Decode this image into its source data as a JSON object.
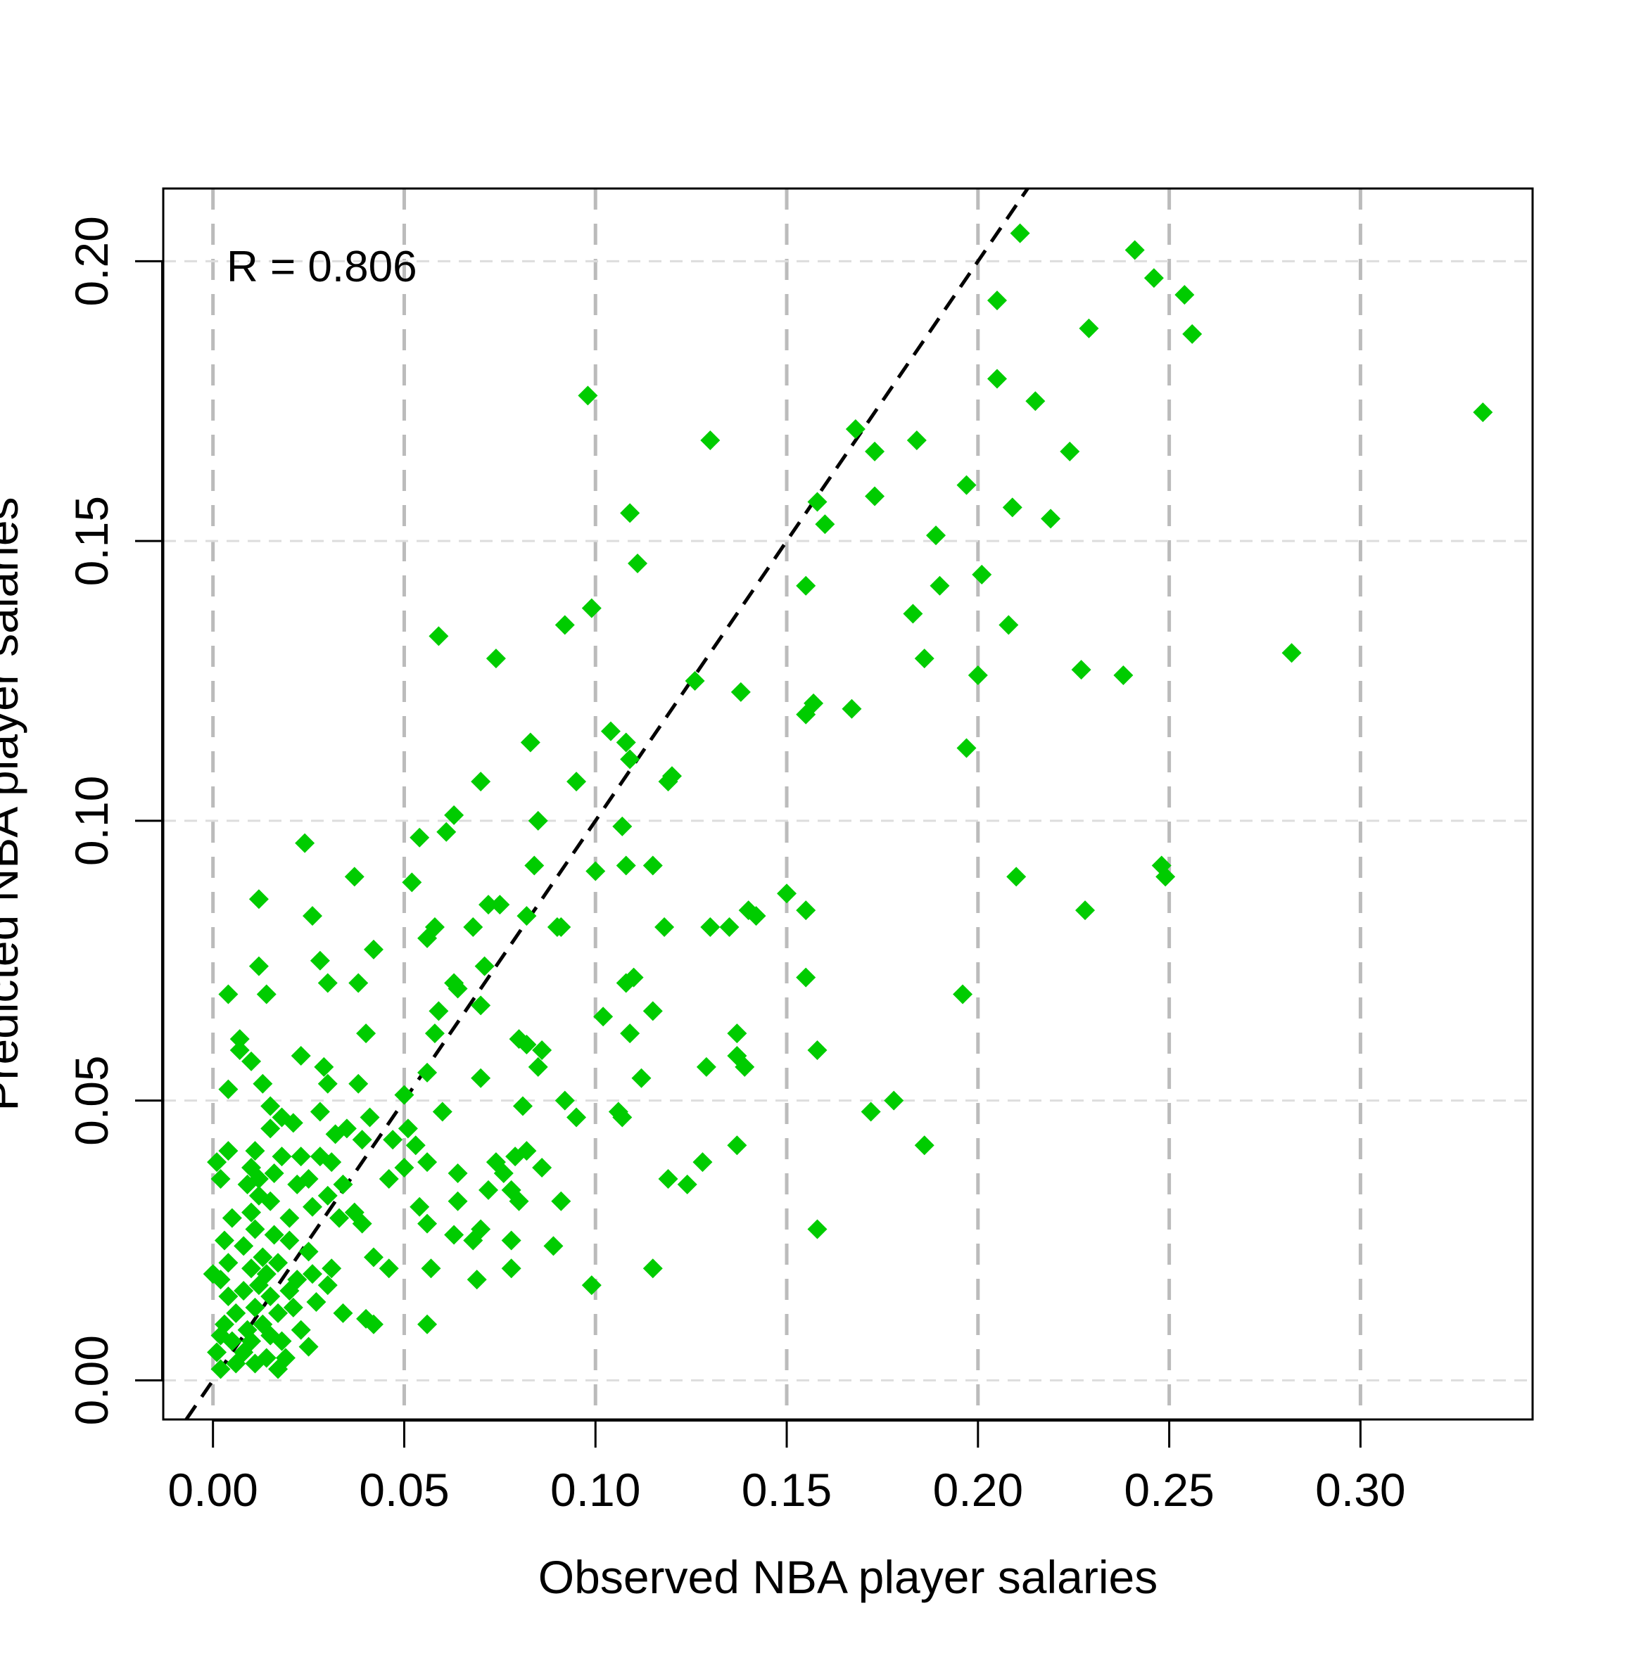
{
  "chart_data": {
    "type": "scatter",
    "title": "",
    "xlabel": "Observed NBA player salaries",
    "ylabel": "Predicted NBA player salaries",
    "xlim": [
      -0.013,
      0.345
    ],
    "ylim": [
      -0.007,
      0.213
    ],
    "x_ticks": [
      "0.00",
      "0.05",
      "0.10",
      "0.15",
      "0.20",
      "0.25",
      "0.30"
    ],
    "y_ticks": [
      "0.00",
      "0.05",
      "0.10",
      "0.15",
      "0.20"
    ],
    "grid": true,
    "reference_line": "y = x",
    "annotation": "R = 0.806",
    "colors": {
      "points": "#00cc00",
      "reference_line": "#000000",
      "grid": "#bbbbbb"
    },
    "marker": "diamond",
    "points": [
      [
        0.211,
        0.205
      ],
      [
        0.241,
        0.202
      ],
      [
        0.246,
        0.197
      ],
      [
        0.254,
        0.194
      ],
      [
        0.205,
        0.193
      ],
      [
        0.229,
        0.188
      ],
      [
        0.256,
        0.187
      ],
      [
        0.098,
        0.176
      ],
      [
        0.205,
        0.179
      ],
      [
        0.215,
        0.175
      ],
      [
        0.332,
        0.173
      ],
      [
        0.168,
        0.17
      ],
      [
        0.13,
        0.168
      ],
      [
        0.184,
        0.168
      ],
      [
        0.173,
        0.166
      ],
      [
        0.224,
        0.166
      ],
      [
        0.197,
        0.16
      ],
      [
        0.173,
        0.158
      ],
      [
        0.158,
        0.157
      ],
      [
        0.109,
        0.155
      ],
      [
        0.209,
        0.156
      ],
      [
        0.219,
        0.154
      ],
      [
        0.16,
        0.153
      ],
      [
        0.189,
        0.151
      ],
      [
        0.111,
        0.146
      ],
      [
        0.201,
        0.144
      ],
      [
        0.155,
        0.142
      ],
      [
        0.19,
        0.142
      ],
      [
        0.099,
        0.138
      ],
      [
        0.183,
        0.137
      ],
      [
        0.092,
        0.135
      ],
      [
        0.208,
        0.135
      ],
      [
        0.059,
        0.133
      ],
      [
        0.074,
        0.129
      ],
      [
        0.186,
        0.129
      ],
      [
        0.282,
        0.13
      ],
      [
        0.227,
        0.127
      ],
      [
        0.238,
        0.126
      ],
      [
        0.2,
        0.126
      ],
      [
        0.126,
        0.125
      ],
      [
        0.138,
        0.123
      ],
      [
        0.157,
        0.121
      ],
      [
        0.155,
        0.119
      ],
      [
        0.167,
        0.12
      ],
      [
        0.104,
        0.116
      ],
      [
        0.108,
        0.114
      ],
      [
        0.083,
        0.114
      ],
      [
        0.197,
        0.113
      ],
      [
        0.109,
        0.111
      ],
      [
        0.07,
        0.107
      ],
      [
        0.095,
        0.107
      ],
      [
        0.119,
        0.107
      ],
      [
        0.12,
        0.108
      ],
      [
        0.063,
        0.101
      ],
      [
        0.085,
        0.1
      ],
      [
        0.107,
        0.099
      ],
      [
        0.054,
        0.097
      ],
      [
        0.061,
        0.098
      ],
      [
        0.024,
        0.096
      ],
      [
        0.084,
        0.092
      ],
      [
        0.108,
        0.092
      ],
      [
        0.115,
        0.092
      ],
      [
        0.248,
        0.092
      ],
      [
        0.249,
        0.09
      ],
      [
        0.037,
        0.09
      ],
      [
        0.21,
        0.09
      ],
      [
        0.052,
        0.089
      ],
      [
        0.1,
        0.091
      ],
      [
        0.012,
        0.086
      ],
      [
        0.15,
        0.087
      ],
      [
        0.072,
        0.085
      ],
      [
        0.075,
        0.085
      ],
      [
        0.155,
        0.084
      ],
      [
        0.14,
        0.084
      ],
      [
        0.142,
        0.083
      ],
      [
        0.228,
        0.084
      ],
      [
        0.026,
        0.083
      ],
      [
        0.082,
        0.083
      ],
      [
        0.058,
        0.081
      ],
      [
        0.068,
        0.081
      ],
      [
        0.09,
        0.081
      ],
      [
        0.091,
        0.081
      ],
      [
        0.118,
        0.081
      ],
      [
        0.13,
        0.081
      ],
      [
        0.135,
        0.081
      ],
      [
        0.056,
        0.079
      ],
      [
        0.042,
        0.077
      ],
      [
        0.028,
        0.075
      ],
      [
        0.012,
        0.074
      ],
      [
        0.071,
        0.074
      ],
      [
        0.038,
        0.071
      ],
      [
        0.03,
        0.071
      ],
      [
        0.063,
        0.071
      ],
      [
        0.108,
        0.071
      ],
      [
        0.11,
        0.072
      ],
      [
        0.155,
        0.072
      ],
      [
        0.064,
        0.07
      ],
      [
        0.196,
        0.069
      ],
      [
        0.004,
        0.069
      ],
      [
        0.014,
        0.069
      ],
      [
        0.07,
        0.067
      ],
      [
        0.115,
        0.066
      ],
      [
        0.059,
        0.066
      ],
      [
        0.102,
        0.065
      ],
      [
        0.137,
        0.062
      ],
      [
        0.04,
        0.062
      ],
      [
        0.058,
        0.062
      ],
      [
        0.109,
        0.062
      ],
      [
        0.007,
        0.061
      ],
      [
        0.08,
        0.061
      ],
      [
        0.082,
        0.06
      ],
      [
        0.086,
        0.059
      ],
      [
        0.158,
        0.059
      ],
      [
        0.007,
        0.059
      ],
      [
        0.137,
        0.058
      ],
      [
        0.023,
        0.058
      ],
      [
        0.01,
        0.057
      ],
      [
        0.139,
        0.056
      ],
      [
        0.029,
        0.056
      ],
      [
        0.085,
        0.056
      ],
      [
        0.129,
        0.056
      ],
      [
        0.07,
        0.054
      ],
      [
        0.112,
        0.054
      ],
      [
        0.056,
        0.055
      ],
      [
        0.013,
        0.053
      ],
      [
        0.03,
        0.053
      ],
      [
        0.038,
        0.053
      ],
      [
        0.004,
        0.052
      ],
      [
        0.05,
        0.051
      ],
      [
        0.092,
        0.05
      ],
      [
        0.178,
        0.05
      ],
      [
        0.015,
        0.049
      ],
      [
        0.081,
        0.049
      ],
      [
        0.106,
        0.048
      ],
      [
        0.172,
        0.048
      ],
      [
        0.018,
        0.047
      ],
      [
        0.028,
        0.048
      ],
      [
        0.06,
        0.048
      ],
      [
        0.095,
        0.047
      ],
      [
        0.107,
        0.047
      ],
      [
        0.041,
        0.047
      ],
      [
        0.021,
        0.046
      ],
      [
        0.015,
        0.045
      ],
      [
        0.035,
        0.045
      ],
      [
        0.051,
        0.045
      ],
      [
        0.032,
        0.044
      ],
      [
        0.039,
        0.043
      ],
      [
        0.047,
        0.043
      ],
      [
        0.186,
        0.042
      ],
      [
        0.137,
        0.042
      ],
      [
        0.004,
        0.041
      ],
      [
        0.053,
        0.042
      ],
      [
        0.011,
        0.041
      ],
      [
        0.018,
        0.04
      ],
      [
        0.028,
        0.04
      ],
      [
        0.079,
        0.04
      ],
      [
        0.082,
        0.041
      ],
      [
        0.001,
        0.039
      ],
      [
        0.023,
        0.04
      ],
      [
        0.074,
        0.039
      ],
      [
        0.128,
        0.039
      ],
      [
        0.01,
        0.038
      ],
      [
        0.031,
        0.039
      ],
      [
        0.056,
        0.039
      ],
      [
        0.086,
        0.038
      ],
      [
        0.076,
        0.037
      ],
      [
        0.016,
        0.037
      ],
      [
        0.064,
        0.037
      ],
      [
        0.002,
        0.036
      ],
      [
        0.012,
        0.036
      ],
      [
        0.025,
        0.036
      ],
      [
        0.046,
        0.036
      ],
      [
        0.05,
        0.038
      ],
      [
        0.119,
        0.036
      ],
      [
        0.124,
        0.035
      ],
      [
        0.009,
        0.035
      ],
      [
        0.022,
        0.035
      ],
      [
        0.034,
        0.035
      ],
      [
        0.072,
        0.034
      ],
      [
        0.078,
        0.034
      ],
      [
        0.012,
        0.033
      ],
      [
        0.03,
        0.033
      ],
      [
        0.08,
        0.032
      ],
      [
        0.091,
        0.032
      ],
      [
        0.064,
        0.032
      ],
      [
        0.015,
        0.032
      ],
      [
        0.026,
        0.031
      ],
      [
        0.054,
        0.031
      ],
      [
        0.01,
        0.03
      ],
      [
        0.037,
        0.03
      ],
      [
        0.005,
        0.029
      ],
      [
        0.033,
        0.029
      ],
      [
        0.02,
        0.029
      ],
      [
        0.039,
        0.028
      ],
      [
        0.056,
        0.028
      ],
      [
        0.07,
        0.027
      ],
      [
        0.011,
        0.027
      ],
      [
        0.016,
        0.026
      ],
      [
        0.063,
        0.026
      ],
      [
        0.158,
        0.027
      ],
      [
        0.003,
        0.025
      ],
      [
        0.02,
        0.025
      ],
      [
        0.068,
        0.025
      ],
      [
        0.078,
        0.025
      ],
      [
        0.008,
        0.024
      ],
      [
        0.089,
        0.024
      ],
      [
        0.025,
        0.023
      ],
      [
        0.013,
        0.022
      ],
      [
        0.042,
        0.022
      ],
      [
        0.004,
        0.021
      ],
      [
        0.017,
        0.021
      ],
      [
        0.01,
        0.02
      ],
      [
        0.031,
        0.02
      ],
      [
        0.046,
        0.02
      ],
      [
        0.057,
        0.02
      ],
      [
        0.078,
        0.02
      ],
      [
        0.115,
        0.02
      ],
      [
        0.0,
        0.019
      ],
      [
        0.014,
        0.019
      ],
      [
        0.026,
        0.019
      ],
      [
        0.002,
        0.018
      ],
      [
        0.022,
        0.018
      ],
      [
        0.069,
        0.018
      ],
      [
        0.012,
        0.017
      ],
      [
        0.03,
        0.017
      ],
      [
        0.008,
        0.016
      ],
      [
        0.02,
        0.016
      ],
      [
        0.099,
        0.017
      ],
      [
        0.004,
        0.015
      ],
      [
        0.015,
        0.015
      ],
      [
        0.027,
        0.014
      ],
      [
        0.011,
        0.013
      ],
      [
        0.021,
        0.013
      ],
      [
        0.034,
        0.012
      ],
      [
        0.006,
        0.012
      ],
      [
        0.017,
        0.012
      ],
      [
        0.04,
        0.011
      ],
      [
        0.003,
        0.01
      ],
      [
        0.013,
        0.01
      ],
      [
        0.042,
        0.01
      ],
      [
        0.056,
        0.01
      ],
      [
        0.009,
        0.009
      ],
      [
        0.023,
        0.009
      ],
      [
        0.002,
        0.008
      ],
      [
        0.015,
        0.008
      ],
      [
        0.005,
        0.007
      ],
      [
        0.01,
        0.007
      ],
      [
        0.018,
        0.007
      ],
      [
        0.025,
        0.006
      ],
      [
        0.001,
        0.005
      ],
      [
        0.008,
        0.005
      ],
      [
        0.014,
        0.004
      ],
      [
        0.019,
        0.004
      ],
      [
        0.006,
        0.003
      ],
      [
        0.011,
        0.003
      ],
      [
        0.002,
        0.002
      ],
      [
        0.017,
        0.002
      ]
    ]
  }
}
